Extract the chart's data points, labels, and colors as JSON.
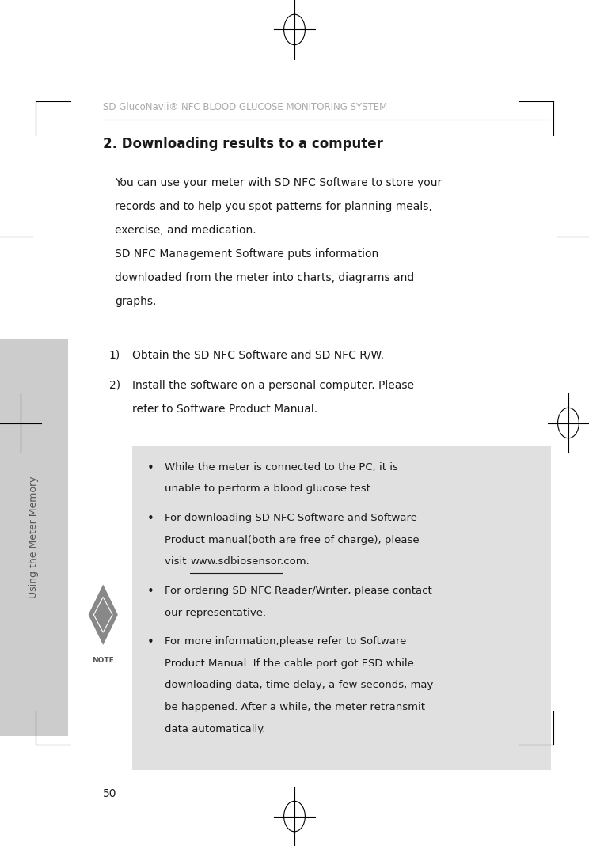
{
  "bg_color": "#ffffff",
  "header_text": "SD GlucoNavii® NFC BLOOD GLUCOSE MONITORING SYSTEM",
  "header_color": "#aaaaaa",
  "header_underline_color": "#aaaaaa",
  "section_title": "2. Downloading results to a computer",
  "section_title_color": "#1a1a1a",
  "body_text_color": "#1a1a1a",
  "note_box_color": "#e0e0e0",
  "note_url": "www.sdbiosensor.com",
  "sidebar_color": "#cccccc",
  "sidebar_text": "Using the Meter Memory",
  "sidebar_text_color": "#555555",
  "page_number": "50",
  "font_size_header": 8.5,
  "font_size_title": 12,
  "font_size_body": 10,
  "font_size_note": 9.5,
  "font_size_page": 10
}
